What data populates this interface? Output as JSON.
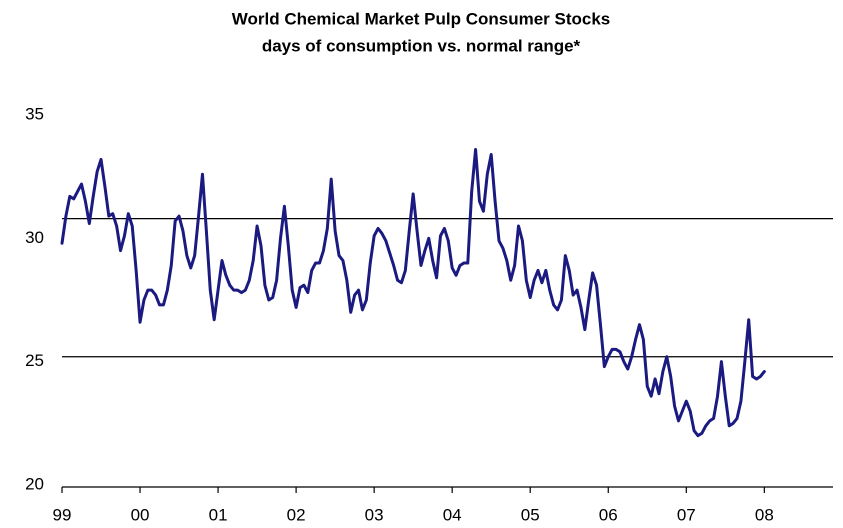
{
  "chart_data": {
    "type": "line",
    "title": "World Chemical Market Pulp Consumer Stocks",
    "subtitle": "days of consumption vs. normal range*",
    "x": [
      1999,
      1999.05,
      1999.1,
      1999.15,
      1999.2,
      1999.25,
      1999.3,
      1999.35,
      1999.4,
      1999.45,
      1999.5,
      1999.55,
      1999.6,
      1999.65,
      1999.7,
      1999.75,
      1999.8,
      1999.85,
      1999.9,
      1999.95,
      2000,
      2000.05,
      2000.1,
      2000.15,
      2000.2,
      2000.25,
      2000.3,
      2000.35,
      2000.4,
      2000.45,
      2000.5,
      2000.55,
      2000.6,
      2000.65,
      2000.7,
      2000.75,
      2000.8,
      2000.85,
      2000.9,
      2000.95,
      2001,
      2001.05,
      2001.1,
      2001.15,
      2001.2,
      2001.25,
      2001.3,
      2001.35,
      2001.4,
      2001.45,
      2001.5,
      2001.55,
      2001.6,
      2001.65,
      2001.7,
      2001.75,
      2001.8,
      2001.85,
      2001.9,
      2001.95,
      2002,
      2002.05,
      2002.1,
      2002.15,
      2002.2,
      2002.25,
      2002.3,
      2002.35,
      2002.4,
      2002.45,
      2002.5,
      2002.55,
      2002.6,
      2002.65,
      2002.7,
      2002.75,
      2002.8,
      2002.85,
      2002.9,
      2002.95,
      2003,
      2003.05,
      2003.1,
      2003.15,
      2003.2,
      2003.25,
      2003.3,
      2003.35,
      2003.4,
      2003.45,
      2003.5,
      2003.55,
      2003.6,
      2003.65,
      2003.7,
      2003.75,
      2003.8,
      2003.85,
      2003.9,
      2003.95,
      2004,
      2004.05,
      2004.1,
      2004.15,
      2004.2,
      2004.25,
      2004.3,
      2004.35,
      2004.4,
      2004.45,
      2004.5,
      2004.55,
      2004.6,
      2004.65,
      2004.7,
      2004.75,
      2004.8,
      2004.85,
      2004.9,
      2004.95,
      2005,
      2005.05,
      2005.1,
      2005.15,
      2005.2,
      2005.25,
      2005.3,
      2005.35,
      2005.4,
      2005.45,
      2005.5,
      2005.55,
      2005.6,
      2005.65,
      2005.7,
      2005.75,
      2005.8,
      2005.85,
      2005.9,
      2005.95,
      2006,
      2006.05,
      2006.1,
      2006.15,
      2006.2,
      2006.25,
      2006.3,
      2006.35,
      2006.4,
      2006.45,
      2006.5,
      2006.55,
      2006.6,
      2006.65,
      2006.7,
      2006.75,
      2006.8,
      2006.85,
      2006.9,
      2006.95,
      2007,
      2007.05,
      2007.1,
      2007.15,
      2007.2,
      2007.25,
      2007.3,
      2007.35,
      2007.4,
      2007.45,
      2007.5,
      2007.55,
      2007.6,
      2007.65,
      2007.7,
      2007.75,
      2007.8,
      2007.85,
      2007.9,
      2007.95,
      2008
    ],
    "series": [
      {
        "color": "#1a1a80",
        "values": [
          29.8,
          30.9,
          31.7,
          31.6,
          31.9,
          32.2,
          31.5,
          30.6,
          31.7,
          32.7,
          33.2,
          32.1,
          30.9,
          31.0,
          30.5,
          29.5,
          30.1,
          31.0,
          30.5,
          28.7,
          26.6,
          27.5,
          27.9,
          27.9,
          27.7,
          27.3,
          27.3,
          27.9,
          28.9,
          30.7,
          30.9,
          30.3,
          29.3,
          28.8,
          29.3,
          30.9,
          32.6,
          30.3,
          27.9,
          26.7,
          27.9,
          29.1,
          28.5,
          28.1,
          27.9,
          27.9,
          27.8,
          27.9,
          28.3,
          29.1,
          30.5,
          29.7,
          28.1,
          27.5,
          27.6,
          28.3,
          30.0,
          31.3,
          29.7,
          27.9,
          27.2,
          28.0,
          28.1,
          27.8,
          28.7,
          29.0,
          29.0,
          29.5,
          30.4,
          32.4,
          30.3,
          29.3,
          29.1,
          28.3,
          27.0,
          27.7,
          27.9,
          27.1,
          27.5,
          29.0,
          30.1,
          30.4,
          30.2,
          29.9,
          29.4,
          28.9,
          28.3,
          28.2,
          28.7,
          30.3,
          31.8,
          30.3,
          28.9,
          29.5,
          30.0,
          29.1,
          28.4,
          30.1,
          30.4,
          29.9,
          28.8,
          28.5,
          28.9,
          29.0,
          29.0,
          31.9,
          33.6,
          31.5,
          31.1,
          32.6,
          33.4,
          31.5,
          29.9,
          29.6,
          29.1,
          28.3,
          28.9,
          30.5,
          29.9,
          28.3,
          27.6,
          28.3,
          28.7,
          28.2,
          28.7,
          27.9,
          27.3,
          27.1,
          27.5,
          29.3,
          28.7,
          27.7,
          27.9,
          27.2,
          26.3,
          27.5,
          28.6,
          28.1,
          26.5,
          24.8,
          25.2,
          25.5,
          25.5,
          25.4,
          25.0,
          24.7,
          25.2,
          25.9,
          26.5,
          25.9,
          24.0,
          23.6,
          24.3,
          23.7,
          24.6,
          25.2,
          24.4,
          23.2,
          22.6,
          23.0,
          23.4,
          23.0,
          22.2,
          22.0,
          22.1,
          22.4,
          22.6,
          22.7,
          23.6,
          25.0,
          23.6,
          22.4,
          22.5,
          22.7,
          23.4,
          25.0,
          26.7,
          24.4,
          24.3,
          24.4,
          24.6
        ]
      }
    ],
    "reference_lines": [
      30.8,
      25.2
    ],
    "xlim": [
      1999,
      2008.88
    ],
    "xticks": [
      {
        "value": 1999,
        "label": "99"
      },
      {
        "value": 2000,
        "label": "00"
      },
      {
        "value": 2001,
        "label": "01"
      },
      {
        "value": 2002,
        "label": "02"
      },
      {
        "value": 2003,
        "label": "03"
      },
      {
        "value": 2004,
        "label": "04"
      },
      {
        "value": 2005,
        "label": "05"
      },
      {
        "value": 2006,
        "label": "06"
      },
      {
        "value": 2007,
        "label": "07"
      },
      {
        "value": 2008,
        "label": "08"
      }
    ],
    "ylim": [
      20,
      35
    ],
    "yticks": [
      20,
      25,
      30,
      35
    ]
  }
}
